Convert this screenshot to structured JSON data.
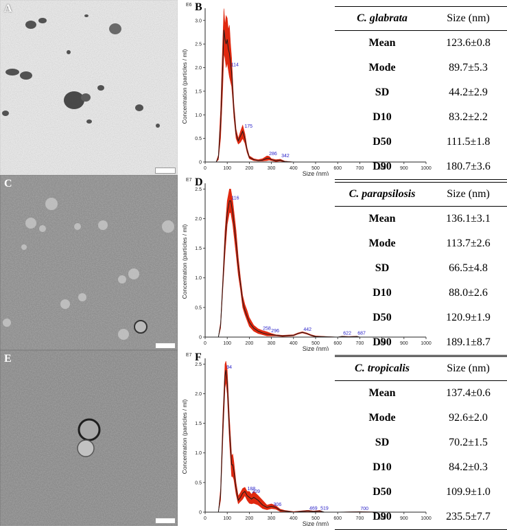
{
  "panels": {
    "A": "A",
    "B": "B",
    "C": "C",
    "D": "D",
    "E": "E",
    "F": "F"
  },
  "axis_common": {
    "xlabel": "Size (nm)",
    "ylabel": "Concentration (particles / ml)",
    "xticks": [
      "0",
      "100",
      "200",
      "300",
      "400",
      "500",
      "600",
      "700",
      "800",
      "900",
      "1000"
    ]
  },
  "tables": [
    {
      "header": [
        "C. glabrata",
        "Size (nm)"
      ],
      "rows": [
        [
          "Mean",
          "123.6±0.8"
        ],
        [
          "Mode",
          "89.7±5.3"
        ],
        [
          "SD",
          "44.2±2.9"
        ],
        [
          "D10",
          "83.2±2.2"
        ],
        [
          "D50",
          "111.5±1.8"
        ],
        [
          "D90",
          "180.7±3.6"
        ]
      ]
    },
    {
      "header": [
        "C. parapsilosis",
        "Size (nm)"
      ],
      "rows": [
        [
          "Mean",
          "136.1±3.1"
        ],
        [
          "Mode",
          "113.7±2.6"
        ],
        [
          "SD",
          "66.5±4.8"
        ],
        [
          "D10",
          "88.0±2.6"
        ],
        [
          "D50",
          "120.9±1.9"
        ],
        [
          "D90",
          "189.1±8.7"
        ]
      ]
    },
    {
      "header": [
        "C. tropicalis",
        "Size (nm)"
      ],
      "rows": [
        [
          "Mean",
          "137.4±0.6"
        ],
        [
          "Mode",
          "92.6±2.0"
        ],
        [
          "SD",
          "70.2±1.5"
        ],
        [
          "D10",
          "84.2±0.3"
        ],
        [
          "D50",
          "109.9±1.0"
        ],
        [
          "D90",
          "235.5±7.7"
        ]
      ]
    }
  ],
  "colors": {
    "band": "#e0280f",
    "line": "#1a1a1a",
    "peak_label": "#2a22c8",
    "axis": "#222222"
  },
  "chart_data": [
    {
      "type": "line",
      "panel": "B",
      "multiplier": "E6",
      "xlabel": "Size (nm)",
      "ylabel": "Concentration (particles / ml)",
      "xlim": [
        0,
        1000
      ],
      "ylim": [
        0,
        3.2
      ],
      "yticks": [
        "0",
        "0.5",
        "1.0",
        "1.5",
        "2.0",
        "2.5",
        "3.0"
      ],
      "x": [
        0,
        50,
        60,
        70,
        80,
        85,
        90,
        95,
        100,
        105,
        110,
        115,
        120,
        125,
        130,
        140,
        150,
        160,
        170,
        180,
        190,
        200,
        220,
        240,
        260,
        280,
        290,
        300,
        320,
        340,
        360,
        400,
        500,
        600,
        700,
        800,
        900,
        1000
      ],
      "mean": [
        0,
        0,
        0.1,
        0.8,
        2.1,
        2.8,
        2.6,
        2.5,
        2.6,
        2.4,
        2.3,
        2.1,
        1.9,
        1.5,
        1.1,
        0.6,
        0.45,
        0.55,
        0.65,
        0.5,
        0.25,
        0.1,
        0.05,
        0.03,
        0.04,
        0.08,
        0.08,
        0.05,
        0.03,
        0.04,
        0.01,
        0,
        0,
        0,
        0,
        0,
        0,
        0
      ],
      "upper": [
        0,
        0,
        0.15,
        1.1,
        2.6,
        3.25,
        2.9,
        3.1,
        3.05,
        2.8,
        2.9,
        2.5,
        2.2,
        1.7,
        1.25,
        0.7,
        0.5,
        0.65,
        0.78,
        0.6,
        0.3,
        0.13,
        0.07,
        0.05,
        0.07,
        0.13,
        0.12,
        0.07,
        0.05,
        0.06,
        0.02,
        0,
        0,
        0,
        0,
        0,
        0,
        0
      ],
      "lower": [
        0,
        0,
        0.05,
        0.5,
        1.6,
        2.3,
        2.2,
        2.0,
        2.1,
        1.95,
        1.8,
        1.7,
        1.6,
        1.3,
        0.95,
        0.5,
        0.38,
        0.42,
        0.5,
        0.4,
        0.2,
        0.07,
        0.03,
        0.02,
        0.02,
        0.03,
        0.04,
        0.03,
        0.01,
        0.02,
        0,
        0,
        0,
        0,
        0,
        0,
        0,
        0
      ],
      "peak_labels": [
        {
          "x": 114,
          "y": 2.0,
          "text": "114"
        },
        {
          "x": 175,
          "y": 0.7,
          "text": "175"
        },
        {
          "x": 286,
          "y": 0.12,
          "text": "286"
        },
        {
          "x": 342,
          "y": 0.07,
          "text": "342"
        }
      ]
    },
    {
      "type": "line",
      "panel": "D",
      "multiplier": "E7",
      "xlabel": "Size (nm)",
      "ylabel": "Concentration (particles / ml)",
      "xlim": [
        0,
        1000
      ],
      "ylim": [
        0,
        2.55
      ],
      "yticks": [
        "0",
        "0.5",
        "1.0",
        "1.5",
        "2.0",
        "2.5"
      ],
      "x": [
        0,
        60,
        70,
        80,
        90,
        100,
        110,
        116,
        125,
        140,
        150,
        160,
        170,
        180,
        190,
        200,
        220,
        240,
        260,
        280,
        300,
        320,
        350,
        400,
        420,
        440,
        460,
        480,
        500,
        600,
        620,
        650,
        687,
        700,
        800,
        900,
        1000
      ],
      "mean": [
        0,
        0,
        0.2,
        0.9,
        1.6,
        2.1,
        2.3,
        2.3,
        2.1,
        1.6,
        1.2,
        0.9,
        0.6,
        0.45,
        0.35,
        0.25,
        0.15,
        0.1,
        0.07,
        0.05,
        0.04,
        0.03,
        0.02,
        0.03,
        0.06,
        0.08,
        0.06,
        0.03,
        0.01,
        0,
        0.01,
        0.005,
        0.01,
        0,
        0,
        0,
        0
      ],
      "upper": [
        0,
        0,
        0.25,
        1.0,
        1.8,
        2.3,
        2.5,
        2.5,
        2.3,
        1.8,
        1.35,
        1.0,
        0.7,
        0.55,
        0.45,
        0.33,
        0.2,
        0.14,
        0.11,
        0.09,
        0.06,
        0.04,
        0.03,
        0.04,
        0.07,
        0.09,
        0.07,
        0.04,
        0.02,
        0,
        0.015,
        0.01,
        0.015,
        0,
        0,
        0,
        0
      ],
      "lower": [
        0,
        0,
        0.15,
        0.8,
        1.4,
        1.9,
        2.1,
        2.1,
        1.9,
        1.4,
        1.05,
        0.8,
        0.5,
        0.38,
        0.28,
        0.18,
        0.1,
        0.06,
        0.04,
        0.02,
        0.02,
        0.02,
        0.01,
        0.02,
        0.05,
        0.07,
        0.05,
        0.02,
        0,
        0,
        0.005,
        0,
        0.005,
        0,
        0,
        0,
        0
      ],
      "peak_labels": [
        {
          "x": 116,
          "y": 2.3,
          "text": "116"
        },
        {
          "x": 258,
          "y": 0.1,
          "text": "258"
        },
        {
          "x": 296,
          "y": 0.06,
          "text": "296"
        },
        {
          "x": 442,
          "y": 0.08,
          "text": "442"
        },
        {
          "x": 622,
          "y": 0.02,
          "text": "622"
        },
        {
          "x": 687,
          "y": 0.02,
          "text": "687"
        }
      ]
    },
    {
      "type": "line",
      "panel": "F",
      "multiplier": "E7",
      "xlabel": "Size (nm)",
      "ylabel": "Concentration (particles / ml)",
      "xlim": [
        0,
        1000
      ],
      "ylim": [
        0,
        2.55
      ],
      "yticks": [
        "0",
        "0.5",
        "1.0",
        "1.5",
        "2.0",
        "2.5"
      ],
      "x": [
        0,
        60,
        70,
        80,
        90,
        94,
        100,
        110,
        120,
        125,
        130,
        140,
        150,
        160,
        170,
        180,
        190,
        200,
        210,
        220,
        240,
        260,
        280,
        300,
        320,
        340,
        360,
        400,
        460,
        469,
        490,
        519,
        540,
        600,
        700,
        800,
        900,
        1000
      ],
      "mean": [
        0,
        0,
        0.3,
        1.4,
        2.3,
        2.4,
        2.2,
        1.4,
        0.8,
        0.8,
        0.7,
        0.4,
        0.2,
        0.25,
        0.32,
        0.35,
        0.28,
        0.25,
        0.22,
        0.25,
        0.2,
        0.12,
        0.08,
        0.1,
        0.08,
        0.03,
        0.02,
        0.0,
        0.02,
        0.02,
        0.01,
        0.02,
        0,
        0,
        0.005,
        0,
        0,
        0
      ],
      "upper": [
        0,
        0,
        0.4,
        1.6,
        2.5,
        2.55,
        2.4,
        1.6,
        0.95,
        0.98,
        0.85,
        0.5,
        0.27,
        0.33,
        0.4,
        0.42,
        0.35,
        0.35,
        0.3,
        0.35,
        0.28,
        0.2,
        0.12,
        0.14,
        0.11,
        0.05,
        0.03,
        0.01,
        0.03,
        0.03,
        0.02,
        0.03,
        0,
        0,
        0.01,
        0,
        0,
        0
      ],
      "lower": [
        0,
        0,
        0.2,
        1.2,
        2.1,
        2.2,
        2.0,
        1.2,
        0.6,
        0.6,
        0.55,
        0.3,
        0.14,
        0.18,
        0.22,
        0.28,
        0.2,
        0.15,
        0.14,
        0.15,
        0.12,
        0.06,
        0.04,
        0.06,
        0.05,
        0.01,
        0.01,
        0,
        0.01,
        0.01,
        0,
        0.01,
        0,
        0,
        0,
        0,
        0,
        0
      ],
      "peak_labels": [
        {
          "x": 94,
          "y": 2.4,
          "text": "94"
        },
        {
          "x": 188,
          "y": 0.35,
          "text": "188"
        },
        {
          "x": 209,
          "y": 0.3,
          "text": "209"
        },
        {
          "x": 306,
          "y": 0.08,
          "text": "306"
        },
        {
          "x": 469,
          "y": 0.02,
          "text": "469"
        },
        {
          "x": 519,
          "y": 0.02,
          "text": "519"
        },
        {
          "x": 700,
          "y": 0.01,
          "text": "700"
        }
      ]
    }
  ]
}
